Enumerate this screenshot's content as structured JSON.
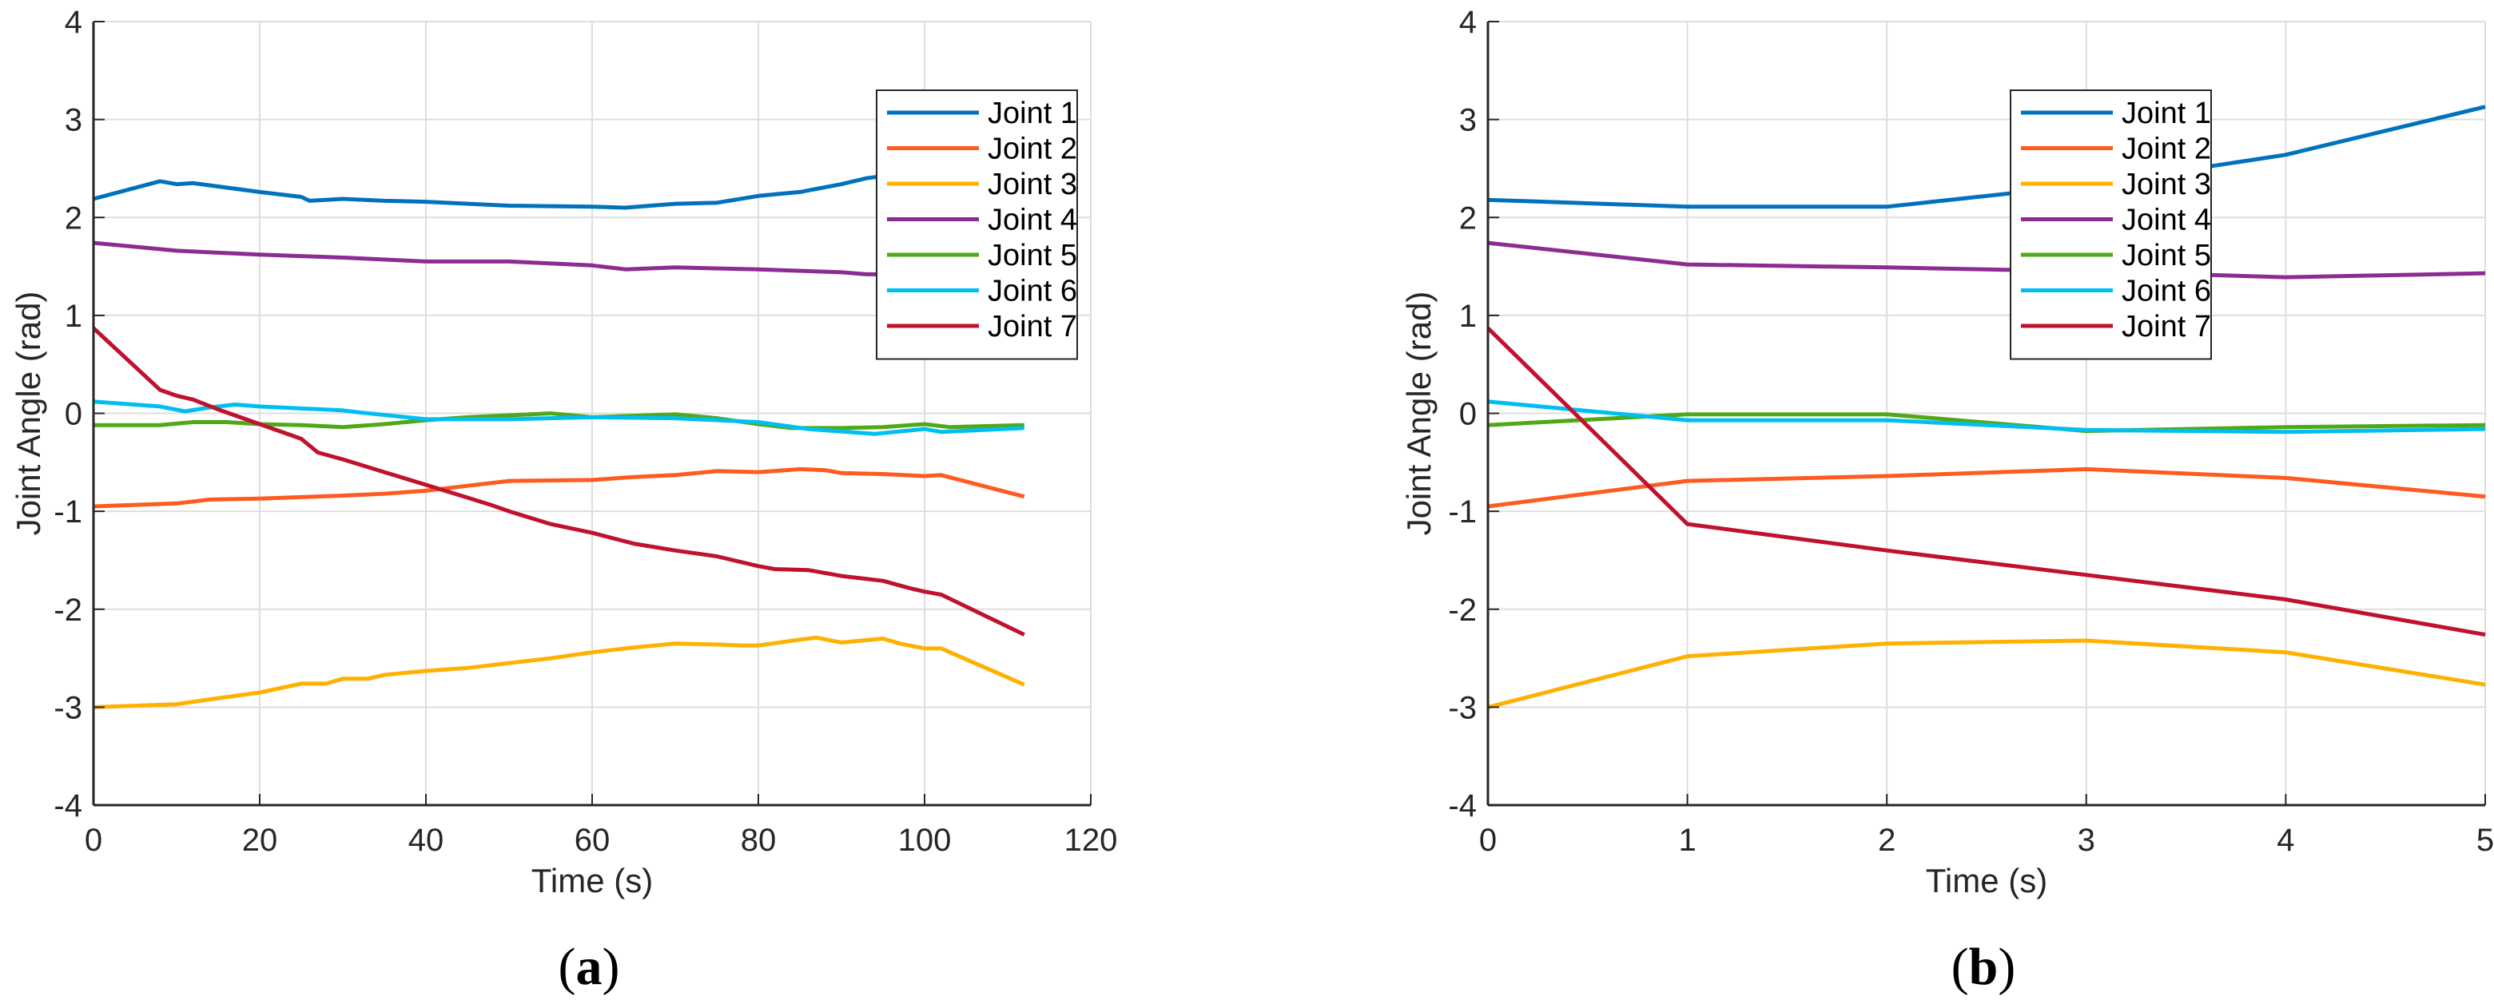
{
  "chart_data": [
    {
      "type": "line",
      "panel_label": "a",
      "xlabel": "Time (s)",
      "ylabel": "Joint Angle (rad)",
      "xlim": [
        0,
        120
      ],
      "ylim": [
        -4,
        4
      ],
      "xticks": [
        0,
        20,
        40,
        60,
        80,
        100,
        120
      ],
      "yticks": [
        -4,
        -3,
        -2,
        -1,
        0,
        1,
        2,
        3,
        4
      ],
      "grid": true,
      "legend": "top-right",
      "series": [
        {
          "name": "Joint 1",
          "color": "#0072BD",
          "x": [
            0,
            8,
            10,
            12,
            20,
            25,
            26,
            30,
            35,
            40,
            50,
            60,
            64,
            70,
            75,
            80,
            85,
            90,
            93,
            100,
            112
          ],
          "y": [
            2.19,
            2.37,
            2.34,
            2.35,
            2.26,
            2.21,
            2.17,
            2.19,
            2.17,
            2.16,
            2.12,
            2.11,
            2.1,
            2.14,
            2.15,
            2.22,
            2.26,
            2.34,
            2.4,
            2.48,
            2.62
          ]
        },
        {
          "name": "Joint 2",
          "color": "#FF5A1F",
          "x": [
            0,
            10,
            14,
            20,
            30,
            35,
            40,
            45,
            50,
            60,
            65,
            70,
            75,
            80,
            85,
            88,
            90,
            95,
            100,
            102,
            112
          ],
          "y": [
            -0.95,
            -0.92,
            -0.88,
            -0.87,
            -0.84,
            -0.82,
            -0.79,
            -0.74,
            -0.69,
            -0.68,
            -0.65,
            -0.63,
            -0.59,
            -0.6,
            -0.57,
            -0.58,
            -0.61,
            -0.62,
            -0.64,
            -0.63,
            -0.85
          ]
        },
        {
          "name": "Joint 3",
          "color": "#FFB000",
          "x": [
            0,
            10,
            14,
            20,
            25,
            28,
            30,
            33,
            35,
            40,
            45,
            50,
            55,
            60,
            65,
            70,
            75,
            78,
            80,
            85,
            87,
            90,
            95,
            97,
            100,
            102,
            112
          ],
          "y": [
            -3.0,
            -2.97,
            -2.92,
            -2.85,
            -2.76,
            -2.76,
            -2.71,
            -2.71,
            -2.67,
            -2.63,
            -2.6,
            -2.55,
            -2.5,
            -2.44,
            -2.39,
            -2.35,
            -2.36,
            -2.37,
            -2.37,
            -2.31,
            -2.29,
            -2.34,
            -2.3,
            -2.35,
            -2.4,
            -2.4,
            -2.77
          ]
        },
        {
          "name": "Joint 4",
          "color": "#8B2C92",
          "x": [
            0,
            10,
            20,
            30,
            40,
            50,
            60,
            64,
            70,
            80,
            90,
            93,
            100,
            112
          ],
          "y": [
            1.74,
            1.66,
            1.62,
            1.59,
            1.55,
            1.55,
            1.51,
            1.47,
            1.49,
            1.47,
            1.44,
            1.42,
            1.42,
            1.42
          ]
        },
        {
          "name": "Joint 5",
          "color": "#4FA818",
          "x": [
            0,
            8,
            12,
            16,
            20,
            25,
            30,
            35,
            40,
            45,
            50,
            55,
            60,
            70,
            75,
            80,
            84,
            90,
            95,
            100,
            103,
            112
          ],
          "y": [
            -0.12,
            -0.12,
            -0.09,
            -0.09,
            -0.11,
            -0.12,
            -0.14,
            -0.11,
            -0.07,
            -0.04,
            -0.02,
            0.0,
            -0.04,
            -0.01,
            -0.05,
            -0.11,
            -0.15,
            -0.15,
            -0.14,
            -0.11,
            -0.14,
            -0.12
          ]
        },
        {
          "name": "Joint 6",
          "color": "#00BFF0",
          "x": [
            0,
            8,
            11,
            14,
            17,
            20,
            30,
            32,
            40,
            50,
            60,
            70,
            80,
            86,
            94,
            100,
            102,
            112
          ],
          "y": [
            0.12,
            0.07,
            0.02,
            0.06,
            0.09,
            0.07,
            0.03,
            0.01,
            -0.06,
            -0.06,
            -0.04,
            -0.05,
            -0.09,
            -0.16,
            -0.21,
            -0.16,
            -0.19,
            -0.15
          ]
        },
        {
          "name": "Joint 7",
          "color": "#C0112E",
          "x": [
            0,
            8,
            10,
            12,
            15,
            20,
            25,
            27,
            30,
            35,
            40,
            45,
            48,
            50,
            55,
            60,
            65,
            70,
            75,
            80,
            82,
            86,
            90,
            95,
            98,
            100,
            102,
            112
          ],
          "y": [
            0.87,
            0.24,
            0.18,
            0.14,
            0.04,
            -0.11,
            -0.26,
            -0.4,
            -0.47,
            -0.6,
            -0.73,
            -0.86,
            -0.94,
            -1.0,
            -1.13,
            -1.22,
            -1.33,
            -1.4,
            -1.46,
            -1.56,
            -1.59,
            -1.6,
            -1.66,
            -1.71,
            -1.78,
            -1.82,
            -1.85,
            -2.26
          ]
        }
      ]
    },
    {
      "type": "line",
      "panel_label": "b",
      "xlabel": "Time (s)",
      "ylabel": "Joint Angle (rad)",
      "xlim": [
        0,
        5
      ],
      "ylim": [
        -4,
        4
      ],
      "xticks": [
        0,
        1,
        2,
        3,
        4,
        5
      ],
      "yticks": [
        -4,
        -3,
        -2,
        -1,
        0,
        1,
        2,
        3,
        4
      ],
      "grid": true,
      "legend": "top-center",
      "series": [
        {
          "name": "Joint 1",
          "color": "#0072BD",
          "x": [
            0,
            1,
            2,
            3,
            4,
            5
          ],
          "y": [
            2.18,
            2.11,
            2.11,
            2.33,
            2.64,
            3.13
          ]
        },
        {
          "name": "Joint 2",
          "color": "#FF5A1F",
          "x": [
            0,
            1,
            2,
            3,
            4,
            5
          ],
          "y": [
            -0.95,
            -0.69,
            -0.64,
            -0.57,
            -0.66,
            -0.85
          ]
        },
        {
          "name": "Joint 3",
          "color": "#FFB000",
          "x": [
            0,
            1,
            2,
            3,
            4,
            5
          ],
          "y": [
            -3.0,
            -2.48,
            -2.35,
            -2.32,
            -2.44,
            -2.77
          ]
        },
        {
          "name": "Joint 4",
          "color": "#8B2C92",
          "x": [
            0,
            1,
            2,
            3,
            4,
            5
          ],
          "y": [
            1.74,
            1.52,
            1.49,
            1.45,
            1.39,
            1.43
          ]
        },
        {
          "name": "Joint 5",
          "color": "#4FA818",
          "x": [
            0,
            1,
            2,
            3,
            4,
            5
          ],
          "y": [
            -0.12,
            -0.01,
            -0.01,
            -0.18,
            -0.14,
            -0.12
          ]
        },
        {
          "name": "Joint 6",
          "color": "#00BFF0",
          "x": [
            0,
            1,
            2,
            3,
            4,
            5
          ],
          "y": [
            0.12,
            -0.07,
            -0.07,
            -0.17,
            -0.19,
            -0.16
          ]
        },
        {
          "name": "Joint 7",
          "color": "#C0112E",
          "x": [
            0,
            1,
            2,
            3,
            4,
            5
          ],
          "y": [
            0.87,
            -1.13,
            -1.4,
            -1.65,
            -1.9,
            -2.26
          ]
        }
      ]
    }
  ]
}
